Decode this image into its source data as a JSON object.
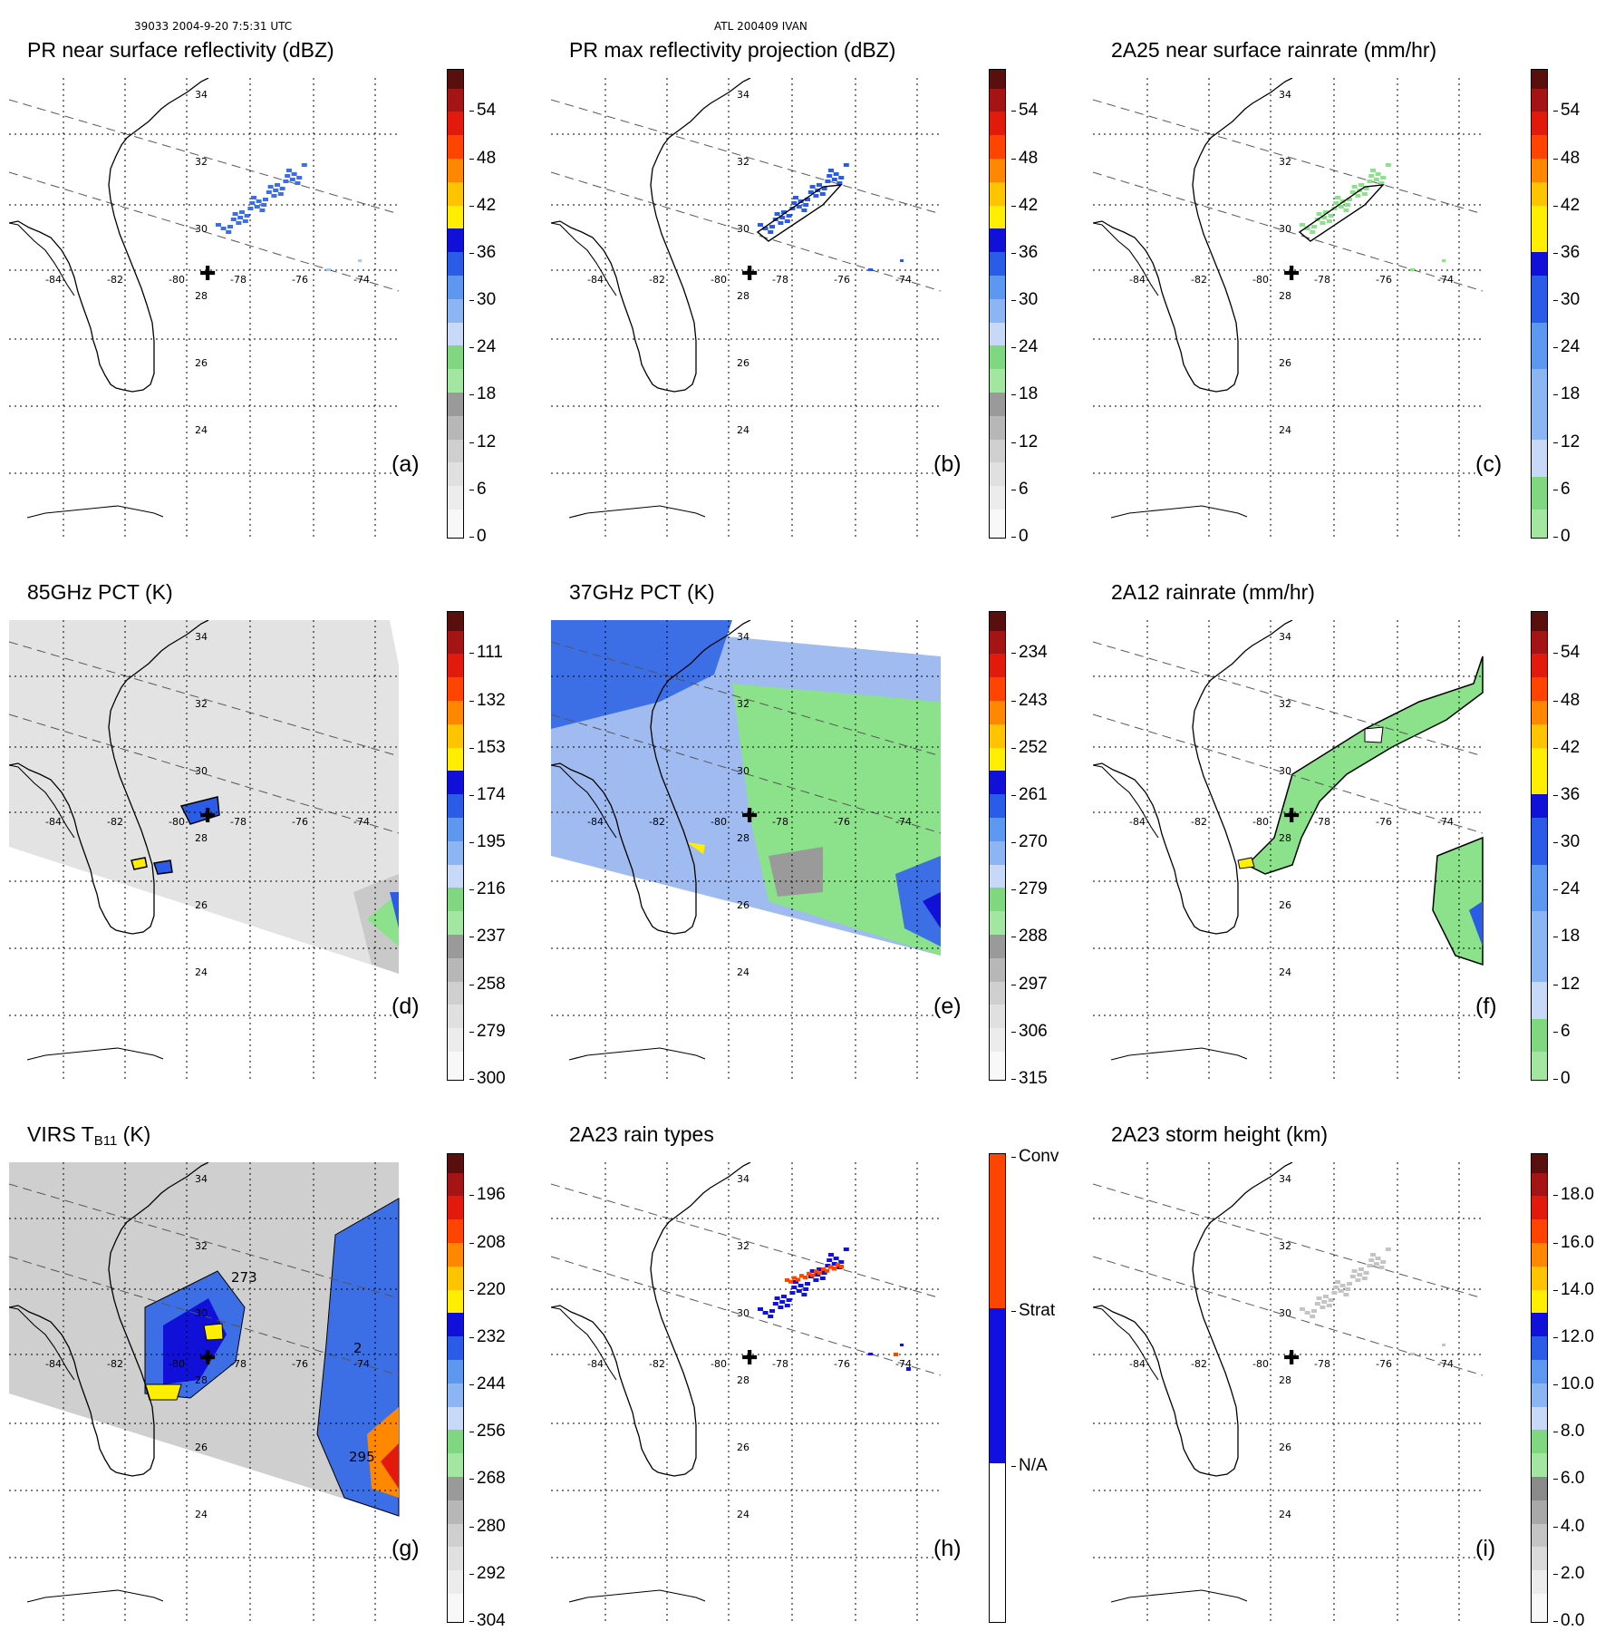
{
  "header": {
    "left": "39033 2004-9-20 7:5:31 UTC",
    "center": "ATL 200409 IVAN"
  },
  "map": {
    "lon_labels": [
      "-84",
      "-82",
      "-80",
      "-78",
      "-76",
      "-74"
    ],
    "lat_labels": [
      "34",
      "32",
      "30",
      "28",
      "26",
      "24"
    ],
    "storm_center_icon": "plus-marker-icon"
  },
  "colors": {
    "green": "#8be28b",
    "blue_light": "#a9c8f5",
    "blue": "#2a5ce8",
    "yellow": "#ffee00",
    "orange": "#ff8800",
    "red": "#e21a0b",
    "darkred": "#6b1a10",
    "gray": "#a8a8a8",
    "strat": "#1010e0",
    "conv": "#ff4400"
  },
  "panels": [
    {
      "id": "a",
      "label": "(a)",
      "title": "PR near surface reflectivity (dBZ)",
      "ticks": [
        "54",
        "48",
        "42",
        "36",
        "30",
        "24",
        "18",
        "12",
        "6",
        "0"
      ]
    },
    {
      "id": "b",
      "label": "(b)",
      "title": "PR max reflectivity projection (dBZ)",
      "ticks": [
        "54",
        "48",
        "42",
        "36",
        "30",
        "24",
        "18",
        "12",
        "6",
        "0"
      ]
    },
    {
      "id": "c",
      "label": "(c)",
      "title": "2A25 near surface rainrate (mm/hr)",
      "ticks": [
        "54",
        "48",
        "42",
        "36",
        "30",
        "24",
        "18",
        "12",
        "6",
        "0"
      ]
    },
    {
      "id": "d",
      "label": "(d)",
      "title": "85GHz PCT (K)",
      "ticks": [
        "111",
        "132",
        "153",
        "174",
        "195",
        "216",
        "237",
        "258",
        "279",
        "300"
      ]
    },
    {
      "id": "e",
      "label": "(e)",
      "title": "37GHz PCT (K)",
      "ticks": [
        "234",
        "243",
        "252",
        "261",
        "270",
        "279",
        "288",
        "297",
        "306",
        "315"
      ]
    },
    {
      "id": "f",
      "label": "(f)",
      "title": "2A12 rainrate (mm/hr)",
      "ticks": [
        "54",
        "48",
        "42",
        "36",
        "30",
        "24",
        "18",
        "12",
        "6",
        "0"
      ]
    },
    {
      "id": "g",
      "label": "(g)",
      "title_main": "VIRS T",
      "title_sub": "B11",
      "title_unit": " (K)",
      "ticks": [
        "196",
        "208",
        "220",
        "232",
        "244",
        "256",
        "268",
        "280",
        "292",
        "304"
      ],
      "contour_labels": [
        "273",
        "2",
        "295"
      ]
    },
    {
      "id": "h",
      "label": "(h)",
      "title": "2A23 rain types",
      "ticks": [
        "Conv",
        "Strat",
        "N/A"
      ]
    },
    {
      "id": "i",
      "label": "(i)",
      "title": "2A23 storm height (km)",
      "ticks": [
        "18.0",
        "16.0",
        "14.0",
        "12.0",
        "10.0",
        "8.0",
        "6.0",
        "4.0",
        "2.0",
        "0.0"
      ]
    }
  ]
}
